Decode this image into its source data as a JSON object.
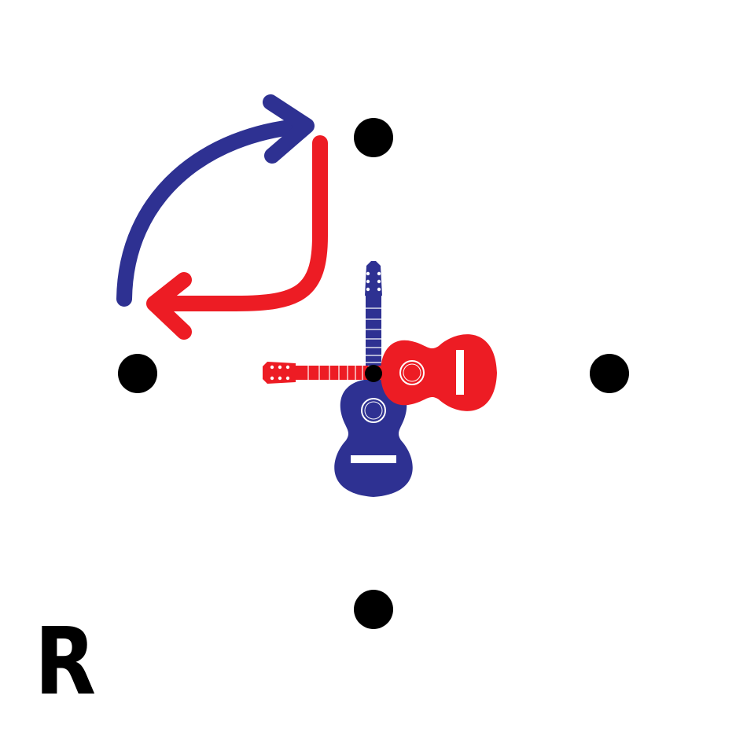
{
  "label": "R",
  "colors": {
    "background": "#ffffff",
    "dots": "#000000",
    "blue": "#2e3192",
    "red": "#ed1c24",
    "label": "#000000"
  },
  "icons": {
    "blue_guitar": "guitar-icon",
    "red_guitar": "guitar-icon",
    "blue_arrow": "curved-arrow-icon",
    "red_arrow": "curved-arrow-icon",
    "dots": "dot-icon"
  }
}
